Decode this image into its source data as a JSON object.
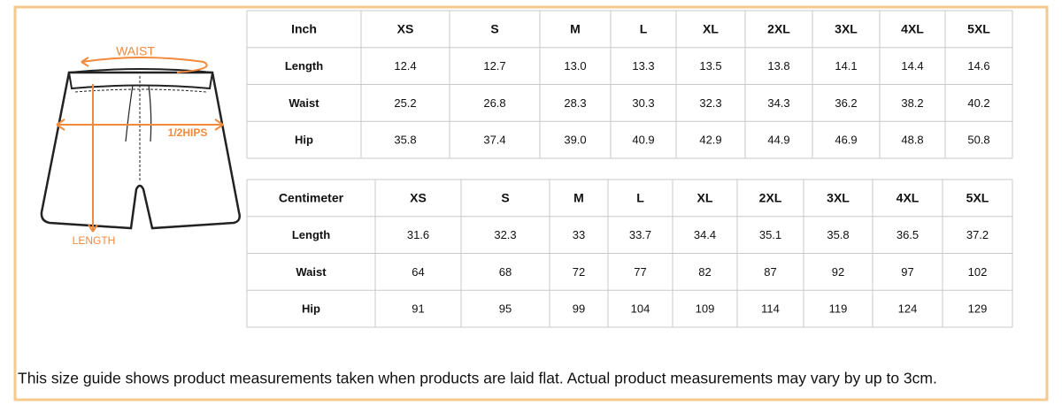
{
  "diagram": {
    "labels": {
      "waist": "WAIST",
      "hips": "1/2HIPS",
      "length": "LENGTH"
    }
  },
  "tables": [
    {
      "header": [
        "Inch",
        "XS",
        "S",
        "M",
        "L",
        "XL",
        "2XL",
        "3XL",
        "4XL",
        "5XL"
      ],
      "rows": [
        [
          "Length",
          "12.4",
          "12.7",
          "13.0",
          "13.3",
          "13.5",
          "13.8",
          "14.1",
          "14.4",
          "14.6"
        ],
        [
          "Waist",
          "25.2",
          "26.8",
          "28.3",
          "30.3",
          "32.3",
          "34.3",
          "36.2",
          "38.2",
          "40.2"
        ],
        [
          "Hip",
          "35.8",
          "37.4",
          "39.0",
          "40.9",
          "42.9",
          "44.9",
          "46.9",
          "48.8",
          "50.8"
        ]
      ]
    },
    {
      "header": [
        "Centimeter",
        "XS",
        "S",
        "M",
        "L",
        "XL",
        "2XL",
        "3XL",
        "4XL",
        "5XL"
      ],
      "rows": [
        [
          "Length",
          "31.6",
          "32.3",
          "33",
          "33.7",
          "34.4",
          "35.1",
          "35.8",
          "36.5",
          "37.2"
        ],
        [
          "Waist",
          "64",
          "68",
          "72",
          "77",
          "82",
          "87",
          "92",
          "97",
          "102"
        ],
        [
          "Hip",
          "91",
          "95",
          "99",
          "104",
          "109",
          "114",
          "119",
          "124",
          "129"
        ]
      ]
    }
  ],
  "caption": "This size guide shows product measurements taken when products are laid flat. Actual product measurements may vary by up to 3cm."
}
